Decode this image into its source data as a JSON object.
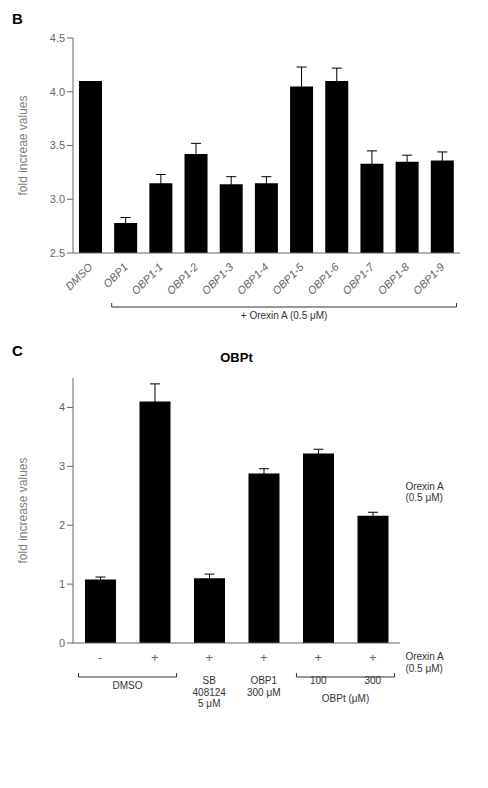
{
  "chart_data": [
    {
      "type": "bar",
      "categories": [
        "DMSO",
        "OBP1",
        "OBP1-1",
        "OBP1-2",
        "OBP1-3",
        "OBP1-4",
        "OBP1-5",
        "OBP1-6",
        "OBP1-7",
        "OBP1-8",
        "OBP1-9"
      ],
      "values": [
        4.1,
        2.78,
        3.15,
        3.42,
        3.14,
        3.15,
        4.05,
        4.1,
        3.33,
        3.35,
        3.36
      ],
      "errors": [
        0.0,
        0.05,
        0.08,
        0.1,
        0.07,
        0.06,
        0.18,
        0.12,
        0.12,
        0.06,
        0.08
      ],
      "color": "#000000",
      "ylim": [
        2.5,
        4.5
      ],
      "yticks": [
        {
          "value": 2.5,
          "label": "2.5"
        },
        {
          "value": 3.0,
          "label": "3.0"
        },
        {
          "value": 3.5,
          "label": "3.5"
        },
        {
          "value": 4.0,
          "label": "4.0"
        },
        {
          "value": 4.5,
          "label": "4.5"
        }
      ],
      "ylabel": "fold increae values",
      "grid": false,
      "annotations": [
        {
          "text": "B"
        },
        {
          "text": "+ Orexin A (0.5 μM)",
          "bars": [
            1,
            10
          ]
        }
      ]
    },
    {
      "type": "bar",
      "title": "OBPt",
      "categories": [
        "-",
        "+",
        "+",
        "+",
        "+",
        "+"
      ],
      "values": [
        1.08,
        4.1,
        1.1,
        2.88,
        3.22,
        2.16
      ],
      "errors": [
        0.04,
        0.3,
        0.07,
        0.08,
        0.07,
        0.06
      ],
      "color": "#000000",
      "ylim": [
        0,
        4.5
      ],
      "yticks": [
        0,
        1,
        2,
        3,
        4
      ],
      "ylabel": "fold increase values",
      "grid": false,
      "annotations": [
        {
          "text": "C"
        },
        {
          "text": "Orexin A\n(0.5 μM)"
        },
        {
          "text": "Orexin A\n(0.5 μM)"
        },
        {
          "text": "DMSO",
          "bars": [
            0,
            1
          ]
        },
        {
          "text": "SB\n408124\n5 μM",
          "bars": [
            2,
            2
          ]
        },
        {
          "text": "OBP1\n300 μM",
          "bars": [
            3,
            3
          ]
        },
        {
          "text": "100",
          "bars": [
            4,
            4
          ]
        },
        {
          "text": "300",
          "bars": [
            5,
            5
          ]
        },
        {
          "text": "OBPt (μM)",
          "bars": [
            4,
            5
          ]
        }
      ]
    }
  ]
}
